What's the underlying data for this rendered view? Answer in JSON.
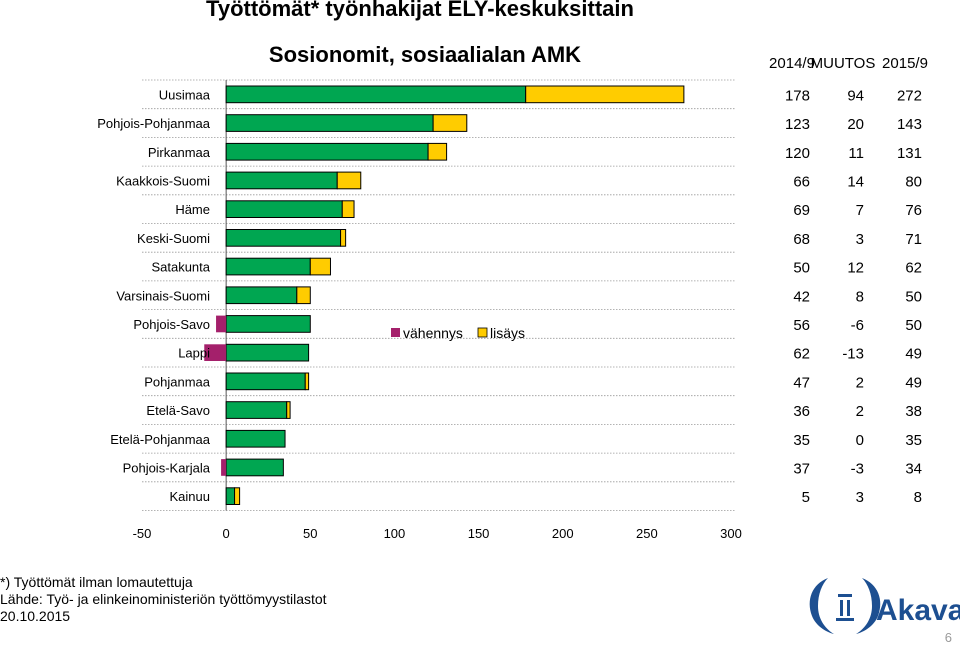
{
  "page": {
    "title": "Työttömät* työnhakijat ELY-keskuksittain",
    "subtitle": "Sosionomit, sosiaalialan AMK",
    "footnote": "*) Työttömät ilman lomautettuja",
    "source": "Lähde: Työ- ja elinkeinoministeriön työttömyystilastot",
    "date": "20.10.2015",
    "logo_text": "Akava",
    "page_number": "6"
  },
  "colors": {
    "base": "#00A651",
    "increase": "#FFCC00",
    "decrease": "#A4206B",
    "logo": "#1D4F91"
  },
  "chart_data": {
    "type": "bar",
    "orientation": "horizontal",
    "stacked": true,
    "categories": [
      "Uusimaa",
      "Pohjois-Pohjanmaa",
      "Pirkanmaa",
      "Kaakkois-Suomi",
      "Häme",
      "Keski-Suomi",
      "Satakunta",
      "Varsinais-Suomi",
      "Pohjois-Savo",
      "Lappi",
      "Pohjanmaa",
      "Etelä-Savo",
      "Etelä-Pohjanmaa",
      "Pohjois-Karjala",
      "Kainuu"
    ],
    "series": [
      {
        "name": "vähennys",
        "values": [
          0,
          0,
          0,
          0,
          0,
          0,
          0,
          0,
          -6,
          -13,
          0,
          0,
          0,
          -3,
          0
        ]
      },
      {
        "name": "lisäys",
        "values": [
          94,
          20,
          11,
          14,
          7,
          3,
          12,
          8,
          0,
          0,
          2,
          2,
          0,
          0,
          3
        ]
      }
    ],
    "xlim": [
      -50,
      300
    ],
    "xticks": [
      -50,
      0,
      50,
      100,
      150,
      200,
      250,
      300
    ],
    "legend_position": "center-right",
    "table": {
      "headers": [
        "2014/9",
        "MUUTOS",
        "2015/9"
      ],
      "rows": [
        [
          "178",
          "94",
          "272"
        ],
        [
          "123",
          "20",
          "143"
        ],
        [
          "120",
          "11",
          "131"
        ],
        [
          "66",
          "14",
          "80"
        ],
        [
          "69",
          "7",
          "76"
        ],
        [
          "68",
          "3",
          "71"
        ],
        [
          "50",
          "12",
          "62"
        ],
        [
          "42",
          "8",
          "50"
        ],
        [
          "56",
          "-6",
          "50"
        ],
        [
          "62",
          "-13",
          "49"
        ],
        [
          "47",
          "2",
          "49"
        ],
        [
          "36",
          "2",
          "38"
        ],
        [
          "35",
          "0",
          "35"
        ],
        [
          "37",
          "-3",
          "34"
        ],
        [
          "5",
          "3",
          "8"
        ]
      ]
    }
  }
}
